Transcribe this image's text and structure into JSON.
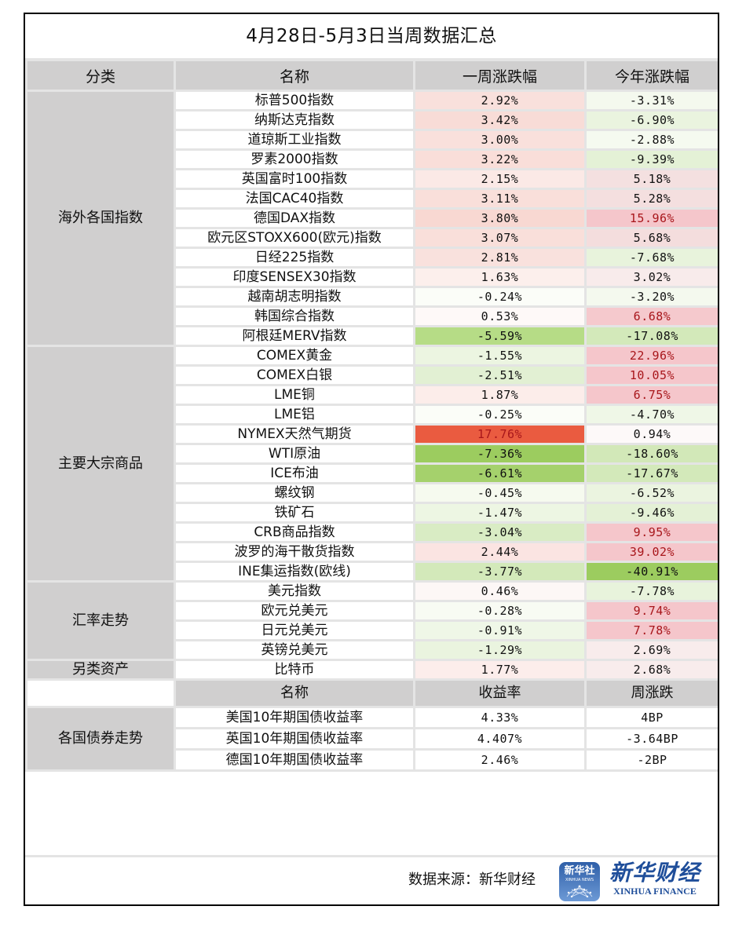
{
  "title": "4月28日-5月3日当周数据汇总",
  "header": {
    "category": "分类",
    "name": "名称",
    "weekly": "一周涨跌幅",
    "ytd": "今年涨跌幅"
  },
  "colors": {
    "header_bg": "#d0cfcf",
    "grid": "#e4e4e4",
    "red_text": "#a8161b",
    "strong_red": "#ea5b40",
    "strong_green": "#9ccc5f"
  },
  "groups": [
    {
      "category": "海外各国指数",
      "rows": [
        {
          "name": "标普500指数",
          "weekly": "2.92%",
          "weekly_bg": "#f9e0dc",
          "ytd": "-3.31%",
          "ytd_bg": "#f4f9ee",
          "ytd_red": false
        },
        {
          "name": "纳斯达克指数",
          "weekly": "3.42%",
          "weekly_bg": "#f8dcd7",
          "ytd": "-6.90%",
          "ytd_bg": "#eaf4df",
          "ytd_red": false
        },
        {
          "name": "道琼斯工业指数",
          "weekly": "3.00%",
          "weekly_bg": "#f9e0dc",
          "ytd": "-2.88%",
          "ytd_bg": "#f5faf0",
          "ytd_red": false
        },
        {
          "name": "罗素2000指数",
          "weekly": "3.22%",
          "weekly_bg": "#f9ded9",
          "ytd": "-9.39%",
          "ytd_bg": "#e4f1d6",
          "ytd_red": false
        },
        {
          "name": "英国富时100指数",
          "weekly": "2.15%",
          "weekly_bg": "#fbe9e6",
          "ytd": "5.18%",
          "ytd_bg": "#f4e0e0",
          "ytd_red": false
        },
        {
          "name": "法国CAC40指数",
          "weekly": "3.11%",
          "weekly_bg": "#f9dfda",
          "ytd": "5.28%",
          "ytd_bg": "#f4dfdf",
          "ytd_red": false
        },
        {
          "name": "德国DAX指数",
          "weekly": "3.80%",
          "weekly_bg": "#f8d8d2",
          "ytd": "15.96%",
          "ytd_bg": "#f5c6cb",
          "ytd_red": true
        },
        {
          "name": "欧元区STOXX600(欧元)指数",
          "weekly": "3.07%",
          "weekly_bg": "#f9dfda",
          "ytd": "5.68%",
          "ytd_bg": "#f4dddd",
          "ytd_red": false
        },
        {
          "name": "日经225指数",
          "weekly": "2.81%",
          "weekly_bg": "#f9e1dd",
          "ytd": "-7.68%",
          "ytd_bg": "#e8f3dc",
          "ytd_red": false
        },
        {
          "name": "印度SENSEX30指数",
          "weekly": "1.63%",
          "weekly_bg": "#fcefec",
          "ytd": "3.02%",
          "ytd_bg": "#f8ebeb",
          "ytd_red": false
        },
        {
          "name": "越南胡志明指数",
          "weekly": "-0.24%",
          "weekly_bg": "#fbfdf8",
          "ytd": "-3.20%",
          "ytd_bg": "#f4f9ee",
          "ytd_red": false
        },
        {
          "name": "韩国综合指数",
          "weekly": "0.53%",
          "weekly_bg": "#fef9f8",
          "ytd": "6.68%",
          "ytd_bg": "#f5c9cd",
          "ytd_red": true
        },
        {
          "name": "阿根廷MERV指数",
          "weekly": "-5.59%",
          "weekly_bg": "#b6dc86",
          "ytd": "-17.08%",
          "ytd_bg": "#d3e9ba",
          "ytd_red": false
        }
      ]
    },
    {
      "category": "主要大宗商品",
      "rows": [
        {
          "name": "COMEX黄金",
          "weekly": "-1.55%",
          "weekly_bg": "#ecf5e1",
          "ytd": "22.96%",
          "ytd_bg": "#f5c6cb",
          "ytd_red": true
        },
        {
          "name": "COMEX白银",
          "weekly": "-2.51%",
          "weekly_bg": "#e2f0d3",
          "ytd": "10.05%",
          "ytd_bg": "#f5c6cb",
          "ytd_red": true
        },
        {
          "name": "LME铜",
          "weekly": "1.87%",
          "weekly_bg": "#fcedea",
          "ytd": "6.75%",
          "ytd_bg": "#f5c6cb",
          "ytd_red": true
        },
        {
          "name": "LME铝",
          "weekly": "-0.25%",
          "weekly_bg": "#fbfdf8",
          "ytd": "-4.70%",
          "ytd_bg": "#eff7e7",
          "ytd_red": false
        },
        {
          "name": "NYMEX天然气期货",
          "weekly": "17.76%",
          "weekly_bg": "#ea5b40",
          "ytd": "0.94%",
          "ytd_bg": "#fdf9f9",
          "ytd_red": false,
          "weekly_red": true
        },
        {
          "name": "WTI原油",
          "weekly": "-7.36%",
          "weekly_bg": "#9ccc5f",
          "ytd": "-18.60%",
          "ytd_bg": "#d2e8b8",
          "ytd_red": false
        },
        {
          "name": "ICE布油",
          "weekly": "-6.61%",
          "weekly_bg": "#a5d16c",
          "ytd": "-17.67%",
          "ytd_bg": "#d3e9ba",
          "ytd_red": false
        },
        {
          "name": "螺纹钢",
          "weekly": "-0.45%",
          "weekly_bg": "#f6faef",
          "ytd": "-6.52%",
          "ytd_bg": "#ebf4e0",
          "ytd_red": false
        },
        {
          "name": "铁矿石",
          "weekly": "-1.47%",
          "weekly_bg": "#edf6e3",
          "ytd": "-9.46%",
          "ytd_bg": "#e4f1d6",
          "ytd_red": false
        },
        {
          "name": "CRB商品指数",
          "weekly": "-3.04%",
          "weekly_bg": "#d9ecc4",
          "ytd": "9.95%",
          "ytd_bg": "#f5c6cb",
          "ytd_red": true
        },
        {
          "name": "波罗的海干散货指数",
          "weekly": "2.44%",
          "weekly_bg": "#fbe4e2",
          "ytd": "39.02%",
          "ytd_bg": "#f5c6cb",
          "ytd_red": true
        },
        {
          "name": "INE集运指数(欧线)",
          "weekly": "-3.77%",
          "weekly_bg": "#d3e9ba",
          "ytd": "-40.91%",
          "ytd_bg": "#9ccc5f",
          "ytd_red": false
        }
      ]
    },
    {
      "category": "汇率走势",
      "rows": [
        {
          "name": "美元指数",
          "weekly": "0.46%",
          "weekly_bg": "#fdf7f6",
          "ytd": "-7.78%",
          "ytd_bg": "#e8f3dc",
          "ytd_red": false
        },
        {
          "name": "欧元兑美元",
          "weekly": "-0.28%",
          "weekly_bg": "#f8fbf3",
          "ytd": "9.74%",
          "ytd_bg": "#f5c6cb",
          "ytd_red": true
        },
        {
          "name": "日元兑美元",
          "weekly": "-0.91%",
          "weekly_bg": "#eff7e7",
          "ytd": "7.78%",
          "ytd_bg": "#f5c6cb",
          "ytd_red": true
        },
        {
          "name": "英镑兑美元",
          "weekly": "-1.29%",
          "weekly_bg": "#eaf4df",
          "ytd": "2.69%",
          "ytd_bg": "#f8ecec",
          "ytd_red": false
        }
      ]
    },
    {
      "category": "另类资产",
      "rows": [
        {
          "name": "比特币",
          "weekly": "1.77%",
          "weekly_bg": "#fcedeb",
          "ytd": "2.68%",
          "ytd_bg": "#f8ecec",
          "ytd_red": false
        }
      ]
    }
  ],
  "bonds": {
    "category": "各国债券走势",
    "header": {
      "name": "名称",
      "yield": "收益率",
      "weekly_change": "周涨跌"
    },
    "rows": [
      {
        "name": "美国10年期国债收益率",
        "yield": "4.33%",
        "change": "4BP"
      },
      {
        "name": "英国10年期国债收益率",
        "yield": "4.407%",
        "change": "-3.64BP"
      },
      {
        "name": "德国10年期国债收益率",
        "yield": "2.46%",
        "change": "-2BP"
      }
    ]
  },
  "footer": {
    "source": "数据来源：新华财经",
    "logo_square_cn": "新华社",
    "logo_square_en": "XINHUA NEWS",
    "logo_square_icon": "network-globe-icon",
    "logo_text_cn": "新华财经",
    "logo_text_en": "XINHUA FINANCE"
  }
}
